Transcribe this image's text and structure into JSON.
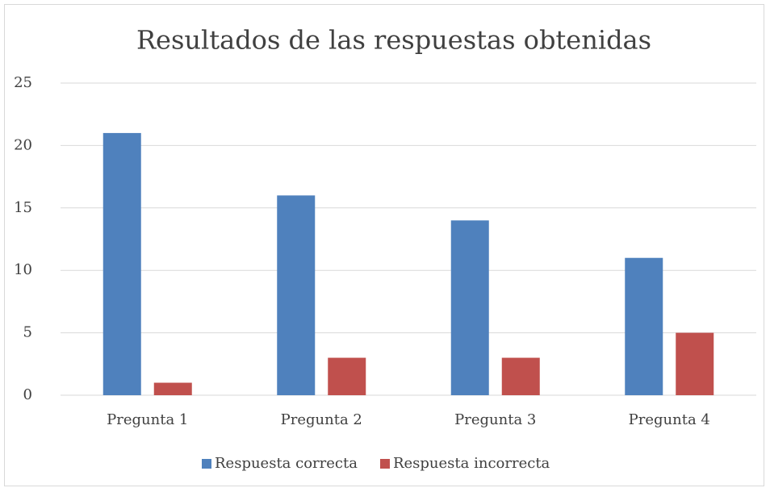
{
  "chart_data": {
    "type": "bar",
    "title": "Resultados de las respuestas obtenidas",
    "categories": [
      "Pregunta 1",
      "Pregunta 2",
      "Pregunta 3",
      "Pregunta 4"
    ],
    "series": [
      {
        "name": "Respuesta correcta",
        "color": "#4f81bd",
        "values": [
          21,
          16,
          14,
          11
        ]
      },
      {
        "name": "Respuesta incorrecta",
        "color": "#c0504d",
        "values": [
          1,
          3,
          3,
          5
        ]
      }
    ],
    "ylim": [
      0,
      25
    ],
    "yticks": [
      0,
      5,
      10,
      15,
      20,
      25
    ],
    "grid": true,
    "legend": "bottom"
  }
}
